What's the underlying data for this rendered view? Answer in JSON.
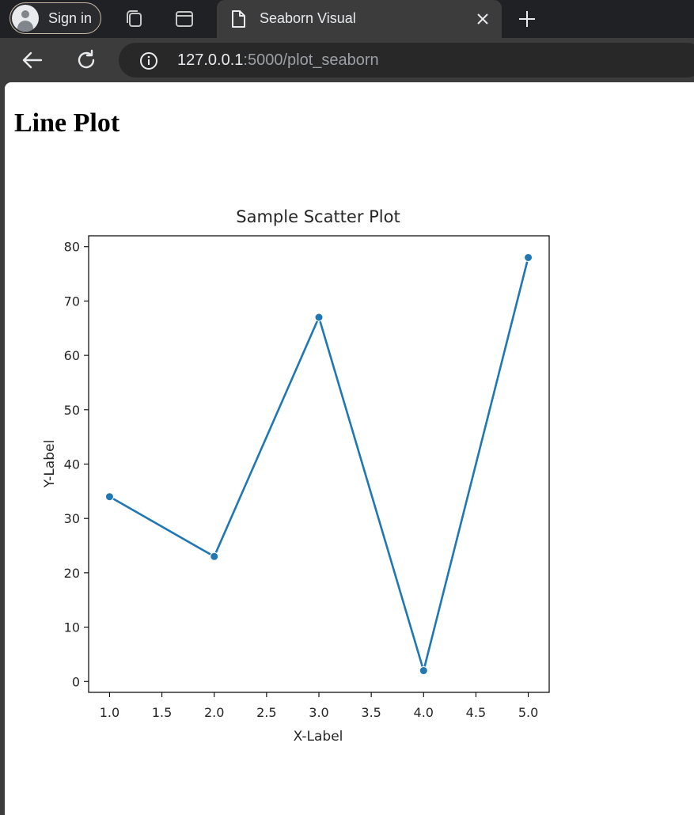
{
  "browser": {
    "signin_label": "Sign in",
    "tab_title": "Seaborn Visual",
    "url_host": "127.0.0.1",
    "url_path": ":5000/plot_seaborn",
    "icons": [
      "avatar-icon",
      "tab-groups-icon",
      "tab-strip-icon",
      "document-icon",
      "close-icon",
      "new-tab-icon",
      "back-arrow-icon",
      "reload-icon",
      "info-icon"
    ]
  },
  "page": {
    "heading": "Line Plot"
  },
  "chart_data": {
    "type": "line",
    "title": "Sample Scatter Plot",
    "xlabel": "X-Label",
    "ylabel": "Y-Label",
    "x": [
      1.0,
      2.0,
      3.0,
      4.0,
      5.0
    ],
    "y": [
      34,
      23,
      67,
      2,
      78
    ],
    "markers": true,
    "color": "#1f77b4",
    "xlim": [
      0.8,
      5.2
    ],
    "ylim": [
      -2,
      82
    ],
    "xticks": [
      "1.0",
      "1.5",
      "2.0",
      "2.5",
      "3.0",
      "3.5",
      "4.0",
      "4.5",
      "5.0"
    ],
    "yticks": [
      "0",
      "10",
      "20",
      "30",
      "40",
      "50",
      "60",
      "70",
      "80"
    ],
    "grid": false,
    "legend": false
  }
}
